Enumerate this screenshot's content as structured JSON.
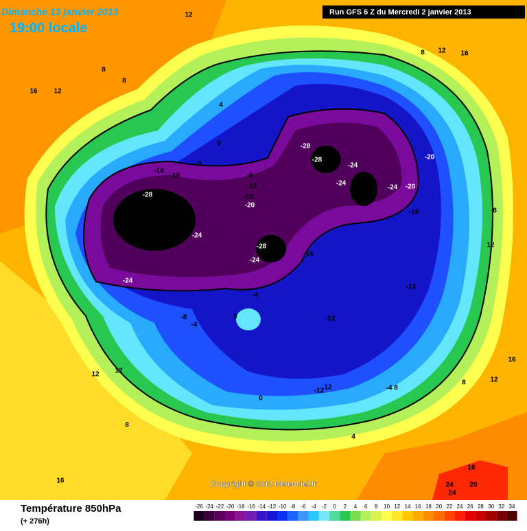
{
  "header": {
    "date": "Dimanche 13 janvier 2013",
    "time": "19:00 locale",
    "run": "Run GFS 6 Z du Mercredi 2 janvier 2013"
  },
  "footer": {
    "title": "Température 850hPa",
    "lead": "(+ 276h)",
    "copyright": "Copyright © 2012 Meteociel.fr"
  },
  "legend": {
    "labels": [
      -26,
      -24,
      -22,
      -20,
      -18,
      -16,
      -14,
      -12,
      -10,
      -8,
      -6,
      -4,
      -2,
      0,
      2,
      4,
      6,
      8,
      10,
      12,
      14,
      16,
      18,
      20,
      22,
      24,
      26,
      28,
      30,
      32,
      34
    ],
    "colors": [
      "#1a001a",
      "#3c003c",
      "#5a005a",
      "#780078",
      "#8c1496",
      "#6e1eb4",
      "#3c14c8",
      "#1414d2",
      "#0a32f0",
      "#1e64ff",
      "#3c96ff",
      "#28c8ff",
      "#78e6ff",
      "#50dca0",
      "#28c850",
      "#78dc50",
      "#b4f05a",
      "#dcf050",
      "#ffff50",
      "#ffe628",
      "#ffc800",
      "#ffaa00",
      "#ff8c00",
      "#ff6e00",
      "#ff4600",
      "#ff1e00",
      "#e60000",
      "#c80000",
      "#a00000",
      "#780000",
      "#500000"
    ]
  },
  "contour_labels": [
    -28,
    -24,
    -24,
    -28,
    -24,
    -16,
    -16,
    -8,
    -12,
    -16,
    -20,
    -28,
    -28,
    -24,
    -24,
    -24,
    -20,
    -20,
    -16,
    -16,
    -12,
    -12,
    -4,
    0,
    -8,
    -4,
    0,
    0,
    4,
    12,
    8,
    12,
    16,
    8,
    8,
    16,
    12,
    12,
    8,
    16,
    12,
    8,
    -4,
    8,
    -12,
    12,
    0,
    12,
    12,
    8,
    4,
    16,
    16,
    24,
    20,
    24
  ]
}
